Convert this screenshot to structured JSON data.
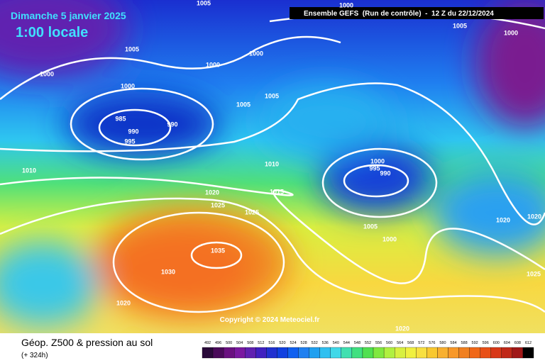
{
  "header": {
    "date": "Dimanche 5 janvier 2025",
    "local_time": "1:00 locale",
    "run": "Ensemble GEFS  (Run de contrôle)  -  12 Z du 22/12/2024"
  },
  "isobar_labels": [
    "1005",
    "1000",
    "1005",
    "1000",
    "1005",
    "1000",
    "1000",
    "1000",
    "1000",
    "1005",
    "1005",
    "985",
    "990",
    "990",
    "995",
    "1010",
    "1010",
    "1000",
    "995",
    "990",
    "1020",
    "1015",
    "1025",
    "1025",
    "1020",
    "1020",
    "1005",
    "1000",
    "1035",
    "1030",
    "1025",
    "1020",
    "1020"
  ],
  "copyright": "Copyright © 2024 Meteociel.fr",
  "footer": {
    "title": "Géop. Z500 & pression au sol",
    "lead": "(+ 324h)"
  },
  "legend": {
    "scale_labels": [
      492,
      496,
      500,
      504,
      508,
      512,
      516,
      520,
      524,
      528,
      532,
      536,
      540,
      544,
      548,
      552,
      556,
      560,
      564,
      568,
      572,
      576,
      580,
      584,
      588,
      592,
      596,
      600,
      604,
      608,
      612
    ]
  }
}
